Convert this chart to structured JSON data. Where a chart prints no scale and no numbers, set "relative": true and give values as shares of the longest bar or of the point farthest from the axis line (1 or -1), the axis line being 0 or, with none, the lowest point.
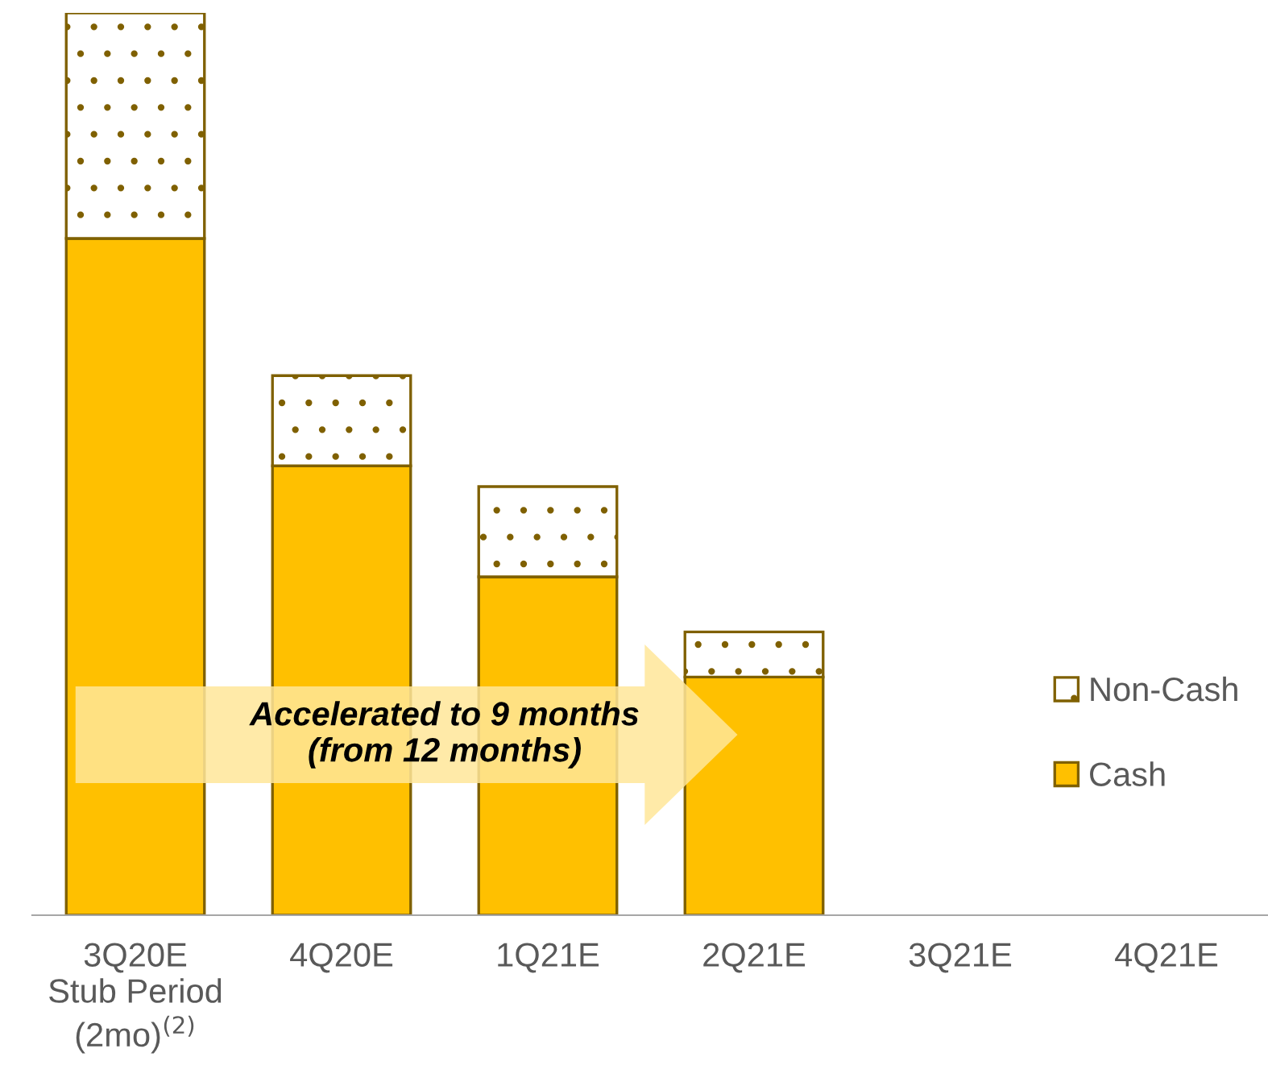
{
  "chart_data": {
    "type": "bar",
    "stacked": true,
    "relative": true,
    "categories": [
      "3Q20E\nStub Period\n(2mo)$^{(2)}$",
      "4Q20E",
      "1Q21E",
      "2Q21E",
      "3Q21E",
      "4Q21E"
    ],
    "series": [
      {
        "name": "Cash",
        "color": "#ffc000",
        "values": [
          0.75,
          0.498,
          0.375,
          0.264,
          null,
          null
        ]
      },
      {
        "name": "Non-Cash",
        "color": "#7f6000",
        "values": [
          0.25,
          0.1,
          0.1,
          0.05,
          null,
          null
        ]
      }
    ],
    "annotations": [
      "Accelerated to 9 months\n(from 12 months)"
    ],
    "legend": "right",
    "grid": false
  }
}
